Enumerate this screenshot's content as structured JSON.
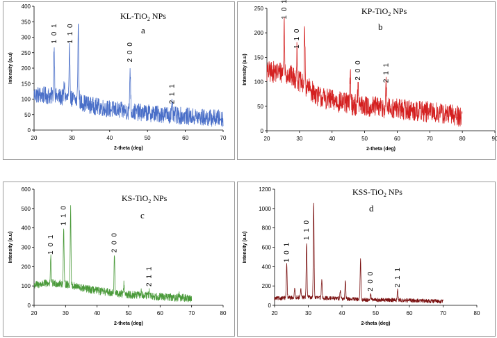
{
  "chart_data": [
    {
      "type": "line",
      "panel": "a",
      "title": "KL-TiO",
      "title_sub": "2",
      "title_suffix": " NPs",
      "label": "a",
      "xlabel": "2-theta (deg)",
      "ylabel": "Intensity (a.u)",
      "xlim": [
        20,
        70
      ],
      "ylim": [
        0,
        400
      ],
      "xticks": [
        20,
        30,
        40,
        50,
        60,
        70
      ],
      "yticks": [
        0,
        50,
        100,
        150,
        200,
        250,
        300,
        350,
        400
      ],
      "color": "#4a6fc8",
      "data_x_range": [
        20,
        70
      ],
      "baseline": [
        [
          20,
          115
        ],
        [
          25,
          110
        ],
        [
          30,
          100
        ],
        [
          35,
          80
        ],
        [
          40,
          68
        ],
        [
          45,
          60
        ],
        [
          50,
          55
        ],
        [
          55,
          50
        ],
        [
          60,
          45
        ],
        [
          65,
          40
        ],
        [
          70,
          38
        ]
      ],
      "noise": 28,
      "peaks": [
        {
          "x": 25.3,
          "y": 270
        },
        {
          "x": 29.4,
          "y": 258
        },
        {
          "x": 31.7,
          "y": 342
        },
        {
          "x": 45.4,
          "y": 200
        },
        {
          "x": 56.5,
          "y": 75
        },
        {
          "x": 28.0,
          "y": 150
        }
      ],
      "annotations": [
        {
          "text": "1 0 1",
          "x": 25.3,
          "y": 275
        },
        {
          "text": "1 1 0",
          "x": 29.6,
          "y": 275
        },
        {
          "text": "2 0 0",
          "x": 45.4,
          "y": 215
        },
        {
          "text": "2 1 1",
          "x": 56.5,
          "y": 80
        }
      ]
    },
    {
      "type": "line",
      "panel": "b",
      "title": "KP-TiO",
      "title_sub": "2",
      "title_suffix": " NPs",
      "label": "b",
      "xlabel": "2-theta (deg)",
      "ylabel": "Intensity (a.u)",
      "xlim": [
        20,
        90
      ],
      "ylim": [
        0,
        250
      ],
      "xticks": [
        20,
        30,
        40,
        50,
        60,
        70,
        80,
        90
      ],
      "yticks": [
        0,
        50,
        100,
        150,
        200,
        250
      ],
      "color": "#d42020",
      "data_x_range": [
        20,
        80
      ],
      "baseline": [
        [
          20,
          120
        ],
        [
          25,
          120
        ],
        [
          28,
          110
        ],
        [
          32,
          90
        ],
        [
          36,
          70
        ],
        [
          40,
          62
        ],
        [
          45,
          55
        ],
        [
          50,
          50
        ],
        [
          60,
          45
        ],
        [
          70,
          38
        ],
        [
          80,
          30
        ]
      ],
      "noise": 22,
      "peaks": [
        {
          "x": 25.3,
          "y": 220
        },
        {
          "x": 31.6,
          "y": 208
        },
        {
          "x": 29.2,
          "y": 160
        },
        {
          "x": 45.6,
          "y": 122
        },
        {
          "x": 48.0,
          "y": 95
        },
        {
          "x": 56.6,
          "y": 90
        }
      ],
      "annotations": [
        {
          "text": "1 0 1",
          "x": 25.3,
          "y": 225
        },
        {
          "text": "1 1 0",
          "x": 29.2,
          "y": 165
        },
        {
          "text": "2 0 0",
          "x": 48.0,
          "y": 100
        },
        {
          "text": "2 1 1",
          "x": 56.6,
          "y": 95
        }
      ]
    },
    {
      "type": "line",
      "panel": "c",
      "title": "KS-TiO",
      "title_sub": "2",
      "title_suffix": " NPs",
      "label": "c",
      "xlabel": "2-theta (deg)",
      "ylabel": "Intensity (a.u)",
      "xlim": [
        20,
        80
      ],
      "ylim": [
        0,
        600
      ],
      "xticks": [
        20,
        30,
        40,
        50,
        60,
        70,
        80
      ],
      "yticks": [
        0,
        100,
        200,
        300,
        400,
        500,
        600
      ],
      "color": "#4a9a3a",
      "data_x_range": [
        20,
        70
      ],
      "baseline": [
        [
          20,
          105
        ],
        [
          25,
          115
        ],
        [
          30,
          110
        ],
        [
          35,
          90
        ],
        [
          40,
          75
        ],
        [
          45,
          65
        ],
        [
          50,
          55
        ],
        [
          55,
          50
        ],
        [
          60,
          45
        ],
        [
          65,
          40
        ],
        [
          70,
          35
        ]
      ],
      "noise": 20,
      "peaks": [
        {
          "x": 25.3,
          "y": 250
        },
        {
          "x": 29.4,
          "y": 400
        },
        {
          "x": 31.6,
          "y": 505
        },
        {
          "x": 45.5,
          "y": 258
        },
        {
          "x": 48.5,
          "y": 110
        },
        {
          "x": 56.5,
          "y": 85
        },
        {
          "x": 54.0,
          "y": 75
        },
        {
          "x": 66.0,
          "y": 60
        }
      ],
      "annotations": [
        {
          "text": "1 0 1",
          "x": 25.3,
          "y": 255
        },
        {
          "text": "1 1 0",
          "x": 29.4,
          "y": 405
        },
        {
          "text": "2 0 0",
          "x": 45.5,
          "y": 265
        },
        {
          "text": "2 1 1",
          "x": 56.5,
          "y": 90
        }
      ]
    },
    {
      "type": "line",
      "panel": "d",
      "title": "KSS-TiO",
      "title_sub": "2",
      "title_suffix": " NPs",
      "label": "d",
      "xlabel": "2-theta (deg)",
      "ylabel": "Intensity (a.u)",
      "xlim": [
        20,
        80
      ],
      "ylim": [
        0,
        1200
      ],
      "xticks": [
        20,
        30,
        40,
        50,
        60,
        70,
        80
      ],
      "yticks": [
        0,
        200,
        400,
        600,
        800,
        1000,
        1200
      ],
      "color": "#7a1010",
      "data_x_range": [
        20,
        70
      ],
      "baseline": [
        [
          20,
          70
        ],
        [
          25,
          80
        ],
        [
          30,
          85
        ],
        [
          35,
          75
        ],
        [
          40,
          70
        ],
        [
          45,
          60
        ],
        [
          50,
          55
        ],
        [
          55,
          55
        ],
        [
          60,
          50
        ],
        [
          65,
          45
        ],
        [
          70,
          40
        ]
      ],
      "noise": 20,
      "peaks": [
        {
          "x": 23.6,
          "y": 420
        },
        {
          "x": 26.0,
          "y": 175
        },
        {
          "x": 27.8,
          "y": 160
        },
        {
          "x": 29.5,
          "y": 650
        },
        {
          "x": 31.6,
          "y": 1060
        },
        {
          "x": 34.0,
          "y": 265
        },
        {
          "x": 39.5,
          "y": 160
        },
        {
          "x": 41.0,
          "y": 240
        },
        {
          "x": 45.5,
          "y": 470
        },
        {
          "x": 48.5,
          "y": 120
        },
        {
          "x": 56.5,
          "y": 160
        }
      ],
      "annotations": [
        {
          "text": "1 0 1",
          "x": 23.6,
          "y": 430
        },
        {
          "text": "1 1 0",
          "x": 29.5,
          "y": 660
        },
        {
          "text": "2 0 0",
          "x": 48.5,
          "y": 130
        },
        {
          "text": "2 1 1",
          "x": 56.5,
          "y": 170
        }
      ]
    }
  ]
}
